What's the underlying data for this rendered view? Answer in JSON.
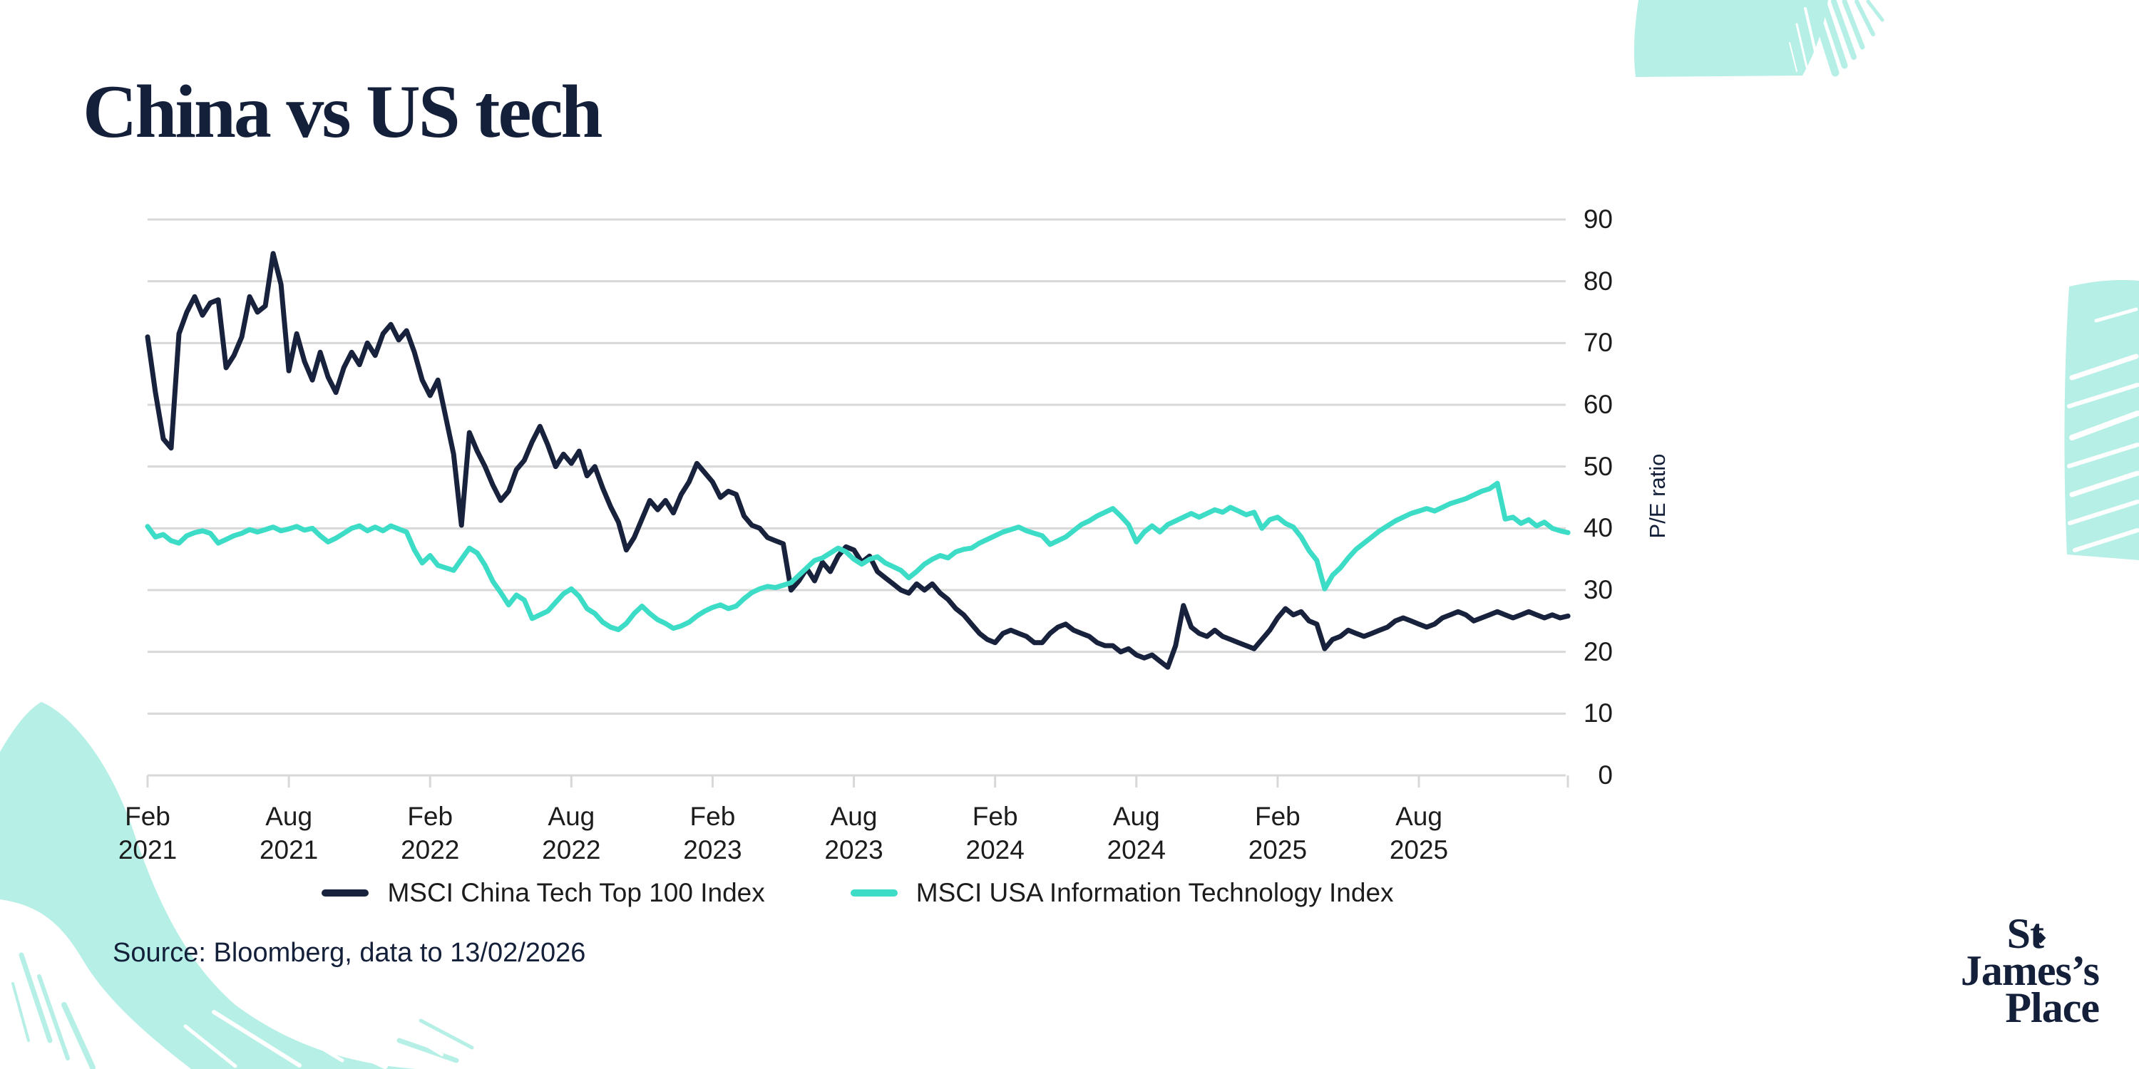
{
  "title": "China vs US tech",
  "source_note": "Source: Bloomberg, data to 13/02/2026",
  "logo": {
    "line1": "St",
    "diamond": "◆",
    "line2": "James’s",
    "line3": "Place"
  },
  "colors": {
    "ink": "#14203A",
    "navy_line": "#18223C",
    "teal_line": "#3CDCC6",
    "brush_teal": "#B6EFE6",
    "gridline": "#D8D8D8",
    "axis_text": "#1C1C1C"
  },
  "chart_data": {
    "type": "line",
    "title": "China vs US tech",
    "xlabel": "",
    "ylabel": "P/E ratio",
    "ylim": [
      0,
      90
    ],
    "y_ticks": [
      0,
      10,
      20,
      30,
      40,
      50,
      60,
      70,
      80,
      90
    ],
    "grid": true,
    "legend_position": "bottom",
    "x_domain_months_from_feb2021": [
      0,
      60.33
    ],
    "points_per_month": 3,
    "data_end_label": "13/02/2026",
    "x_tick_labels": [
      {
        "month": "Feb",
        "year": "2021",
        "m": 0
      },
      {
        "month": "Aug",
        "year": "2021",
        "m": 6
      },
      {
        "month": "Feb",
        "year": "2022",
        "m": 12
      },
      {
        "month": "Aug",
        "year": "2022",
        "m": 18
      },
      {
        "month": "Feb",
        "year": "2023",
        "m": 24
      },
      {
        "month": "Aug",
        "year": "2023",
        "m": 30
      },
      {
        "month": "Feb",
        "year": "2024",
        "m": 36
      },
      {
        "month": "Aug",
        "year": "2024",
        "m": 42
      },
      {
        "month": "Feb",
        "year": "2025",
        "m": 48
      },
      {
        "month": "Aug",
        "year": "2025",
        "m": 54
      }
    ],
    "series": [
      {
        "name": "MSCI China Tech Top 100 Index",
        "color_key": "navy_line",
        "values": [
          71,
          62,
          54.5,
          53,
          71.5,
          75,
          77.5,
          74.5,
          76.5,
          77,
          66,
          68,
          71,
          77.5,
          75,
          76,
          84.5,
          79.5,
          65.5,
          71.5,
          67,
          64,
          68.5,
          64.5,
          62,
          66,
          68.5,
          66.5,
          70,
          68,
          71.5,
          73,
          70.5,
          72,
          68.5,
          64,
          61.5,
          64,
          58,
          52,
          40.5,
          55.5,
          52.5,
          50,
          47,
          44.5,
          46,
          49.5,
          51,
          54,
          56.5,
          53.5,
          50,
          52,
          50.5,
          52.5,
          48.5,
          50,
          46.5,
          43.5,
          41,
          36.5,
          38.5,
          41.5,
          44.5,
          43,
          44.5,
          42.5,
          45.5,
          47.5,
          50.5,
          49,
          47.5,
          45,
          46,
          45.5,
          42,
          40.5,
          40,
          38.5,
          38,
          37.5,
          30,
          31.5,
          33.5,
          31.5,
          34.5,
          33,
          35.5,
          37,
          36.5,
          34.5,
          35.5,
          33,
          32,
          31,
          30,
          29.5,
          31,
          30,
          31,
          29.5,
          28.5,
          27,
          26,
          24.5,
          23,
          22,
          21.5,
          23,
          23.5,
          23,
          22.5,
          21.5,
          21.5,
          23,
          24,
          24.5,
          23.5,
          23,
          22.5,
          21.5,
          21,
          21,
          20,
          20.5,
          19.5,
          19,
          19.5,
          18.5,
          17.5,
          21,
          27.5,
          24,
          23,
          22.5,
          23.5,
          22.5,
          22,
          21.5,
          21,
          20.5,
          22,
          23.5,
          25.5,
          27,
          26,
          26.5,
          25,
          24.5,
          20.5,
          22,
          22.5,
          23.5,
          23,
          22.5,
          23,
          23.5,
          24,
          25,
          25.5,
          25,
          24.5,
          24,
          24.5,
          25.5,
          26,
          26.5,
          26,
          25,
          25.5,
          26,
          26.5,
          26,
          25.5,
          26,
          26.5,
          26,
          25.5,
          26,
          25.5,
          25.8
        ]
      },
      {
        "name": "MSCI USA Information Technology Index",
        "color_key": "teal_line",
        "values": [
          40.3,
          38.6,
          39,
          38,
          37.6,
          38.8,
          39.3,
          39.6,
          39.2,
          37.6,
          38.2,
          38.8,
          39.2,
          39.8,
          39.4,
          39.8,
          40.2,
          39.6,
          39.9,
          40.3,
          39.7,
          40,
          38.8,
          37.8,
          38.4,
          39.2,
          40,
          40.4,
          39.6,
          40.2,
          39.6,
          40.4,
          39.9,
          39.4,
          36.5,
          34.4,
          35.6,
          34,
          33.6,
          33.2,
          35,
          36.8,
          36,
          34,
          31.4,
          29.6,
          27.6,
          29.2,
          28.4,
          25.4,
          26,
          26.6,
          28,
          29.4,
          30.2,
          29,
          27,
          26.2,
          24.8,
          24,
          23.6,
          24.6,
          26.2,
          27.4,
          26.2,
          25.2,
          24.6,
          23.8,
          24.2,
          24.8,
          25.8,
          26.6,
          27.2,
          27.6,
          27,
          27.4,
          28.6,
          29.6,
          30.2,
          30.6,
          30.4,
          30.8,
          31.2,
          32.4,
          33.6,
          34.8,
          35.2,
          36,
          36.8,
          36.2,
          35,
          34.2,
          35,
          35.4,
          34.4,
          33.8,
          33.2,
          32,
          33,
          34.2,
          35,
          35.6,
          35.2,
          36.2,
          36.6,
          36.8,
          37.6,
          38.2,
          38.8,
          39.4,
          39.8,
          40.2,
          39.6,
          39.2,
          38.8,
          37.4,
          38,
          38.6,
          39.6,
          40.6,
          41.2,
          42,
          42.6,
          43.2,
          42,
          40.6,
          37.8,
          39.4,
          40.4,
          39.4,
          40.6,
          41.2,
          41.8,
          42.4,
          41.8,
          42.4,
          43,
          42.6,
          43.4,
          42.8,
          42.2,
          42.6,
          40,
          41.4,
          41.8,
          40.8,
          40.2,
          38.6,
          36.4,
          34.8,
          30.2,
          32.4,
          33.6,
          35.2,
          36.6,
          37.6,
          38.6,
          39.6,
          40.4,
          41.2,
          41.8,
          42.4,
          42.8,
          43.2,
          42.8,
          43.4,
          44,
          44.4,
          44.8,
          45.4,
          46,
          46.4,
          47.3,
          41.5,
          41.8,
          40.8,
          41.4,
          40.4,
          41,
          40,
          39.6,
          39.3
        ]
      }
    ]
  }
}
